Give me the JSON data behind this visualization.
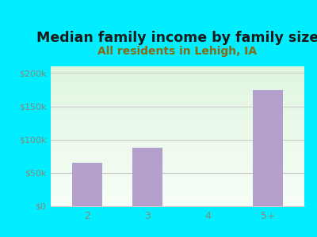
{
  "title": "Median family income by family size",
  "subtitle": "All residents in Lehigh, IA",
  "categories": [
    "2",
    "3",
    "4",
    "5+"
  ],
  "values": [
    65000,
    87500,
    0,
    175000
  ],
  "bar_color": "#b3a0cc",
  "title_fontsize": 12.5,
  "subtitle_fontsize": 10,
  "subtitle_color": "#8b6914",
  "title_color": "#1a1a1a",
  "background_outer": "#00eeff",
  "background_inner_topleft": "#f0faf0",
  "background_inner_topright": "#e0f0e8",
  "background_inner_bottom": "#fafff8",
  "ylim": [
    0,
    210000
  ],
  "yticks": [
    0,
    50000,
    100000,
    150000,
    200000
  ],
  "ytick_labels": [
    "$0",
    "$50k",
    "$100k",
    "$150k",
    "$200k"
  ],
  "grid_color": "#cccccc",
  "tick_color": "#888877"
}
